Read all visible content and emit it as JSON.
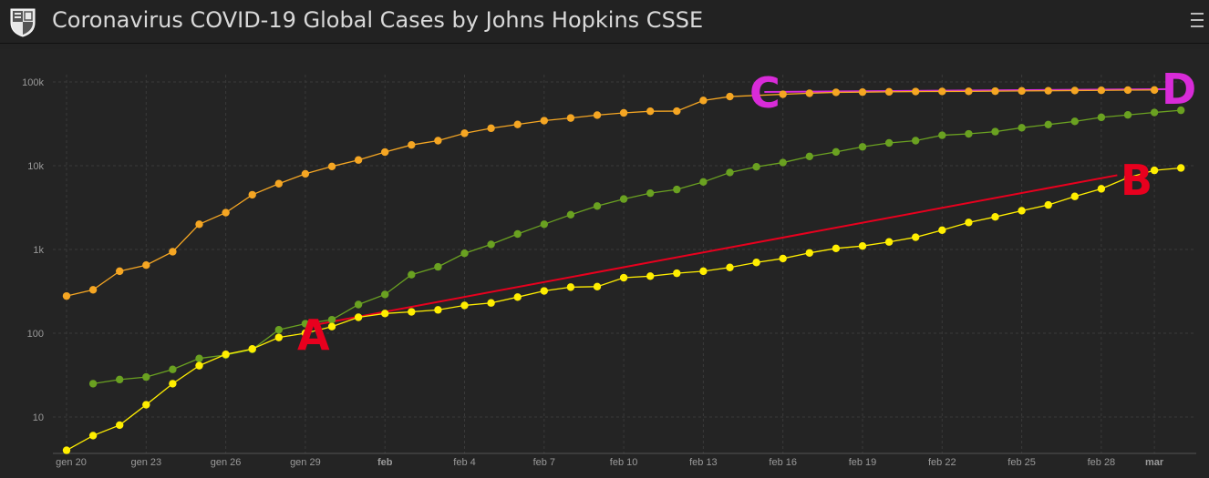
{
  "header": {
    "title": "Coronavirus COVID-19 Global Cases by Johns Hopkins CSSE",
    "logo_icon": "university-shield-icon",
    "menu_icon": "hamburger-menu-icon"
  },
  "chart_data": {
    "type": "line",
    "title": "",
    "xlabel": "",
    "ylabel": "",
    "yscale": "log",
    "ylim": [
      3,
      100000
    ],
    "x_ticks": [
      {
        "label": "gen 20",
        "day": 0,
        "bold": false
      },
      {
        "label": "gen 23",
        "day": 3,
        "bold": false
      },
      {
        "label": "gen 26",
        "day": 6,
        "bold": false
      },
      {
        "label": "gen 29",
        "day": 9,
        "bold": false
      },
      {
        "label": "feb",
        "day": 12,
        "bold": true
      },
      {
        "label": "feb 4",
        "day": 15,
        "bold": false
      },
      {
        "label": "feb 7",
        "day": 18,
        "bold": false
      },
      {
        "label": "feb 10",
        "day": 21,
        "bold": false
      },
      {
        "label": "feb 13",
        "day": 24,
        "bold": false
      },
      {
        "label": "feb 16",
        "day": 27,
        "bold": false
      },
      {
        "label": "feb 19",
        "day": 30,
        "bold": false
      },
      {
        "label": "feb 22",
        "day": 33,
        "bold": false
      },
      {
        "label": "feb 25",
        "day": 36,
        "bold": false
      },
      {
        "label": "feb 28",
        "day": 39,
        "bold": false
      },
      {
        "label": "mar",
        "day": 41,
        "bold": true
      }
    ],
    "y_ticks": [
      {
        "label": "10",
        "value": 10
      },
      {
        "label": "100",
        "value": 100
      },
      {
        "label": "1k",
        "value": 1000
      },
      {
        "label": "10k",
        "value": 10000
      },
      {
        "label": "100k",
        "value": 100000
      }
    ],
    "grid": true,
    "series": [
      {
        "color": "#f5a623",
        "start_day": 0,
        "values": [
          278,
          330,
          550,
          650,
          940,
          2000,
          2750,
          4500,
          6100,
          8000,
          9800,
          11700,
          14550,
          17700,
          19900,
          24400,
          28000,
          31100,
          34500,
          37100,
          40200,
          42700,
          44700,
          44800,
          60100,
          66900,
          69000,
          71200,
          73300,
          75100,
          75600,
          76200,
          76800,
          77000,
          77200,
          77600,
          78100,
          78500,
          79000,
          79400,
          79900,
          80100
        ]
      },
      {
        "color": "#6aa121",
        "start_day": 1,
        "values": [
          25,
          28,
          30,
          37,
          50,
          55,
          64,
          110,
          130,
          145,
          220,
          290,
          500,
          620,
          900,
          1150,
          1530,
          2000,
          2600,
          3300,
          4000,
          4700,
          5200,
          6400,
          8300,
          9700,
          10900,
          12900,
          14600,
          16800,
          18700,
          19900,
          23100,
          24000,
          25500,
          28400,
          31000,
          33800,
          37800,
          40400,
          43200,
          45900
        ]
      },
      {
        "color": "#ffee00",
        "start_day": 0,
        "values": [
          4,
          6,
          8,
          14,
          25,
          41,
          56,
          65,
          89,
          100,
          120,
          155,
          172,
          180,
          190,
          215,
          230,
          270,
          320,
          355,
          360,
          460,
          480,
          520,
          550,
          610,
          700,
          780,
          910,
          1030,
          1100,
          1230,
          1400,
          1700,
          2100,
          2450,
          2900,
          3400,
          4300,
          5300,
          7200,
          8800,
          9400
        ]
      }
    ],
    "annotations": [
      {
        "text": "A",
        "color": "#e8001e"
      },
      {
        "text": "B",
        "color": "#e8001e"
      },
      {
        "text": "C",
        "color": "#d82bd8"
      },
      {
        "text": "D",
        "color": "#d82bd8"
      }
    ],
    "annotation_lines": [
      {
        "from": "A",
        "to": "B",
        "color": "#e8001e",
        "from_day": 9,
        "from_value": 120,
        "to_day": 39.6,
        "to_value": 7700
      },
      {
        "from": "C",
        "to": "D",
        "color": "#d82bd8",
        "from_day": 26.3,
        "from_value": 76000,
        "to_day": 41.6,
        "to_value": 82000
      }
    ]
  }
}
